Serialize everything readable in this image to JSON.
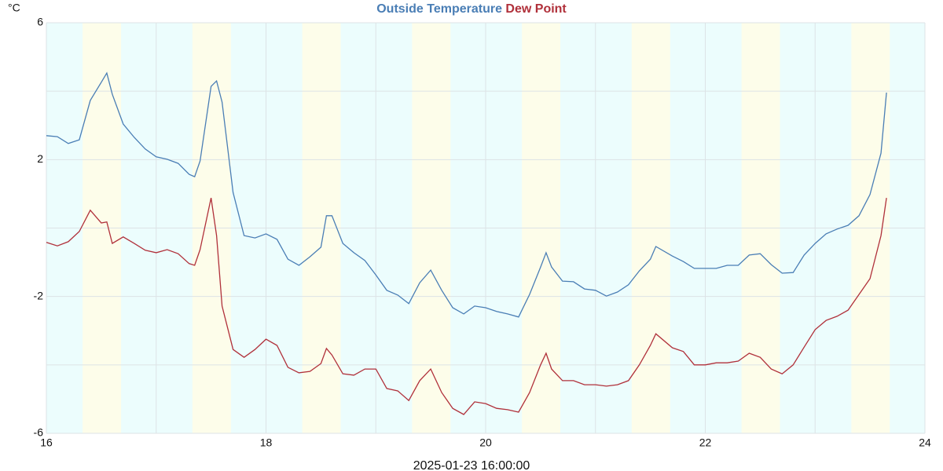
{
  "chart_data": {
    "type": "line",
    "y_label": "°C",
    "x_label": "2025-01-23 16:00:00",
    "x": [
      16.0,
      16.1,
      16.2,
      16.3,
      16.4,
      16.5,
      16.55,
      16.6,
      16.7,
      16.8,
      16.9,
      17.0,
      17.1,
      17.2,
      17.3,
      17.35,
      17.4,
      17.5,
      17.55,
      17.6,
      17.7,
      17.8,
      17.9,
      18.0,
      18.1,
      18.2,
      18.3,
      18.4,
      18.5,
      18.55,
      18.6,
      18.7,
      18.8,
      18.9,
      19.0,
      19.1,
      19.2,
      19.3,
      19.4,
      19.5,
      19.6,
      19.7,
      19.8,
      19.9,
      20.0,
      20.1,
      20.2,
      20.3,
      20.4,
      20.5,
      20.55,
      20.6,
      20.7,
      20.8,
      20.9,
      21.0,
      21.1,
      21.2,
      21.3,
      21.4,
      21.5,
      21.55,
      21.7,
      21.8,
      21.9,
      22.0,
      22.1,
      22.2,
      22.3,
      22.4,
      22.5,
      22.6,
      22.7,
      22.8,
      22.9,
      23.0,
      23.1,
      23.2,
      23.3,
      23.4,
      23.5,
      23.6,
      23.65
    ],
    "series": [
      {
        "name": "Outside Temperature",
        "color": "#4a7eb5",
        "values": [
          2.7,
          2.67,
          2.47,
          2.58,
          3.73,
          4.26,
          4.53,
          3.91,
          3.04,
          2.65,
          2.31,
          2.08,
          2.01,
          1.89,
          1.57,
          1.5,
          1.96,
          4.14,
          4.3,
          3.68,
          1.04,
          -0.22,
          -0.29,
          -0.17,
          -0.33,
          -0.91,
          -1.09,
          -0.84,
          -0.56,
          0.36,
          0.36,
          -0.45,
          -0.72,
          -0.95,
          -1.37,
          -1.82,
          -1.96,
          -2.21,
          -1.6,
          -1.23,
          -1.82,
          -2.33,
          -2.51,
          -2.28,
          -2.33,
          -2.44,
          -2.51,
          -2.6,
          -1.94,
          -1.14,
          -0.72,
          -1.14,
          -1.55,
          -1.57,
          -1.78,
          -1.82,
          -1.99,
          -1.87,
          -1.66,
          -1.25,
          -0.91,
          -0.54,
          -0.82,
          -0.98,
          -1.18,
          -1.18,
          -1.18,
          -1.09,
          -1.09,
          -0.79,
          -0.75,
          -1.07,
          -1.32,
          -1.3,
          -0.79,
          -0.45,
          -0.17,
          -0.03,
          0.08,
          0.36,
          0.98,
          2.19,
          3.96
        ]
      },
      {
        "name": "Dew Point",
        "color": "#b0303a",
        "values": [
          -0.42,
          -0.52,
          -0.4,
          -0.1,
          0.52,
          0.15,
          0.18,
          -0.45,
          -0.26,
          -0.45,
          -0.65,
          -0.72,
          -0.63,
          -0.75,
          -1.04,
          -1.09,
          -0.63,
          0.88,
          -0.22,
          -2.28,
          -3.55,
          -3.78,
          -3.55,
          -3.25,
          -3.43,
          -4.07,
          -4.23,
          -4.19,
          -3.96,
          -3.52,
          -3.71,
          -4.26,
          -4.3,
          -4.12,
          -4.12,
          -4.69,
          -4.76,
          -5.04,
          -4.46,
          -4.12,
          -4.81,
          -5.27,
          -5.45,
          -5.08,
          -5.13,
          -5.27,
          -5.31,
          -5.38,
          -4.81,
          -4.0,
          -3.66,
          -4.12,
          -4.46,
          -4.46,
          -4.58,
          -4.58,
          -4.62,
          -4.58,
          -4.46,
          -4.0,
          -3.43,
          -3.09,
          -3.5,
          -3.61,
          -4.0,
          -4.0,
          -3.94,
          -3.94,
          -3.89,
          -3.66,
          -3.78,
          -4.12,
          -4.26,
          -4.0,
          -3.48,
          -2.97,
          -2.7,
          -2.58,
          -2.4,
          -1.94,
          -1.48,
          -0.22,
          0.88
        ]
      }
    ],
    "xlim": [
      16,
      24
    ],
    "xticks": [
      16,
      18,
      20,
      22,
      24
    ],
    "minor_xticks": [
      17,
      19,
      21,
      23
    ],
    "ylim": [
      -6,
      6
    ],
    "yticks": [
      -6,
      -2,
      2,
      6
    ],
    "minor_yticks": [
      -4,
      0,
      4
    ],
    "grid": true
  }
}
